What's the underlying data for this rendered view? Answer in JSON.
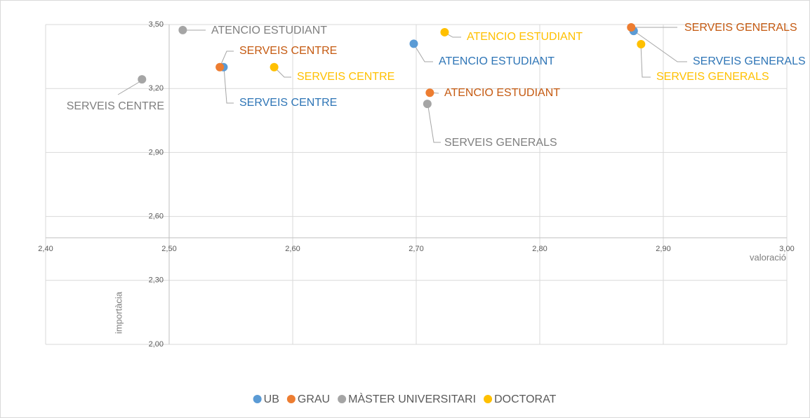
{
  "chart_data": {
    "type": "scatter",
    "x_label": "valoració",
    "y_label": "importàcia",
    "xlim": [
      2.4,
      3.0
    ],
    "ylim": [
      2.0,
      3.5
    ],
    "xticks": [
      {
        "value": 2.4,
        "label": "2,40"
      },
      {
        "value": 2.5,
        "label": "2,50"
      },
      {
        "value": 2.6,
        "label": "2,60"
      },
      {
        "value": 2.7,
        "label": "2,70"
      },
      {
        "value": 2.8,
        "label": "2,80"
      },
      {
        "value": 2.9,
        "label": "2,90"
      },
      {
        "value": 3.0,
        "label": "3,00"
      }
    ],
    "yticks": [
      {
        "value": 2.0,
        "label": "2,00"
      },
      {
        "value": 2.3,
        "label": "2,30"
      },
      {
        "value": 2.6,
        "label": "2,60"
      },
      {
        "value": 2.9,
        "label": "2,90"
      },
      {
        "value": 3.2,
        "label": "3,20"
      },
      {
        "value": 3.5,
        "label": "3,50"
      }
    ],
    "grid": true,
    "legend": "bottom",
    "series": [
      {
        "name": "UB",
        "color": "#5b9bd5",
        "label_color": "#2e75b6",
        "x": [
          2.544,
          2.698,
          2.876
        ],
        "values": [
          3.3,
          3.41,
          3.47
        ],
        "labels": [
          "SERVEIS CENTRE",
          "ATENCIO ESTUDIANT",
          "SERVEIS GENERALS"
        ]
      },
      {
        "name": "GRAU",
        "color": "#ed7d31",
        "label_color": "#c55a11",
        "x": [
          2.541,
          2.711,
          2.874
        ],
        "values": [
          3.3,
          3.18,
          3.487
        ],
        "labels": [
          "SERVEIS CENTRE",
          "ATENCIO ESTUDIANT",
          "SERVEIS GENERALS"
        ]
      },
      {
        "name": "MÀSTER UNIVERSITARI",
        "color": "#a5a5a5",
        "label_color": "#7f7f7f",
        "x": [
          2.478,
          2.511,
          2.709
        ],
        "values": [
          3.243,
          3.474,
          3.128
        ],
        "labels": [
          "SERVEIS CENTRE",
          "ATENCIO ESTUDIANT",
          "SERVEIS GENERALS"
        ]
      },
      {
        "name": "DOCTORAT",
        "color": "#ffc000",
        "label_color": "#ffc000",
        "x": [
          2.585,
          2.723,
          2.882
        ],
        "values": [
          3.3,
          3.464,
          3.408
        ],
        "labels": [
          "SERVEIS CENTRE",
          "ATENCIO ESTUDIANT",
          "SERVEIS GENERALS"
        ]
      }
    ]
  }
}
